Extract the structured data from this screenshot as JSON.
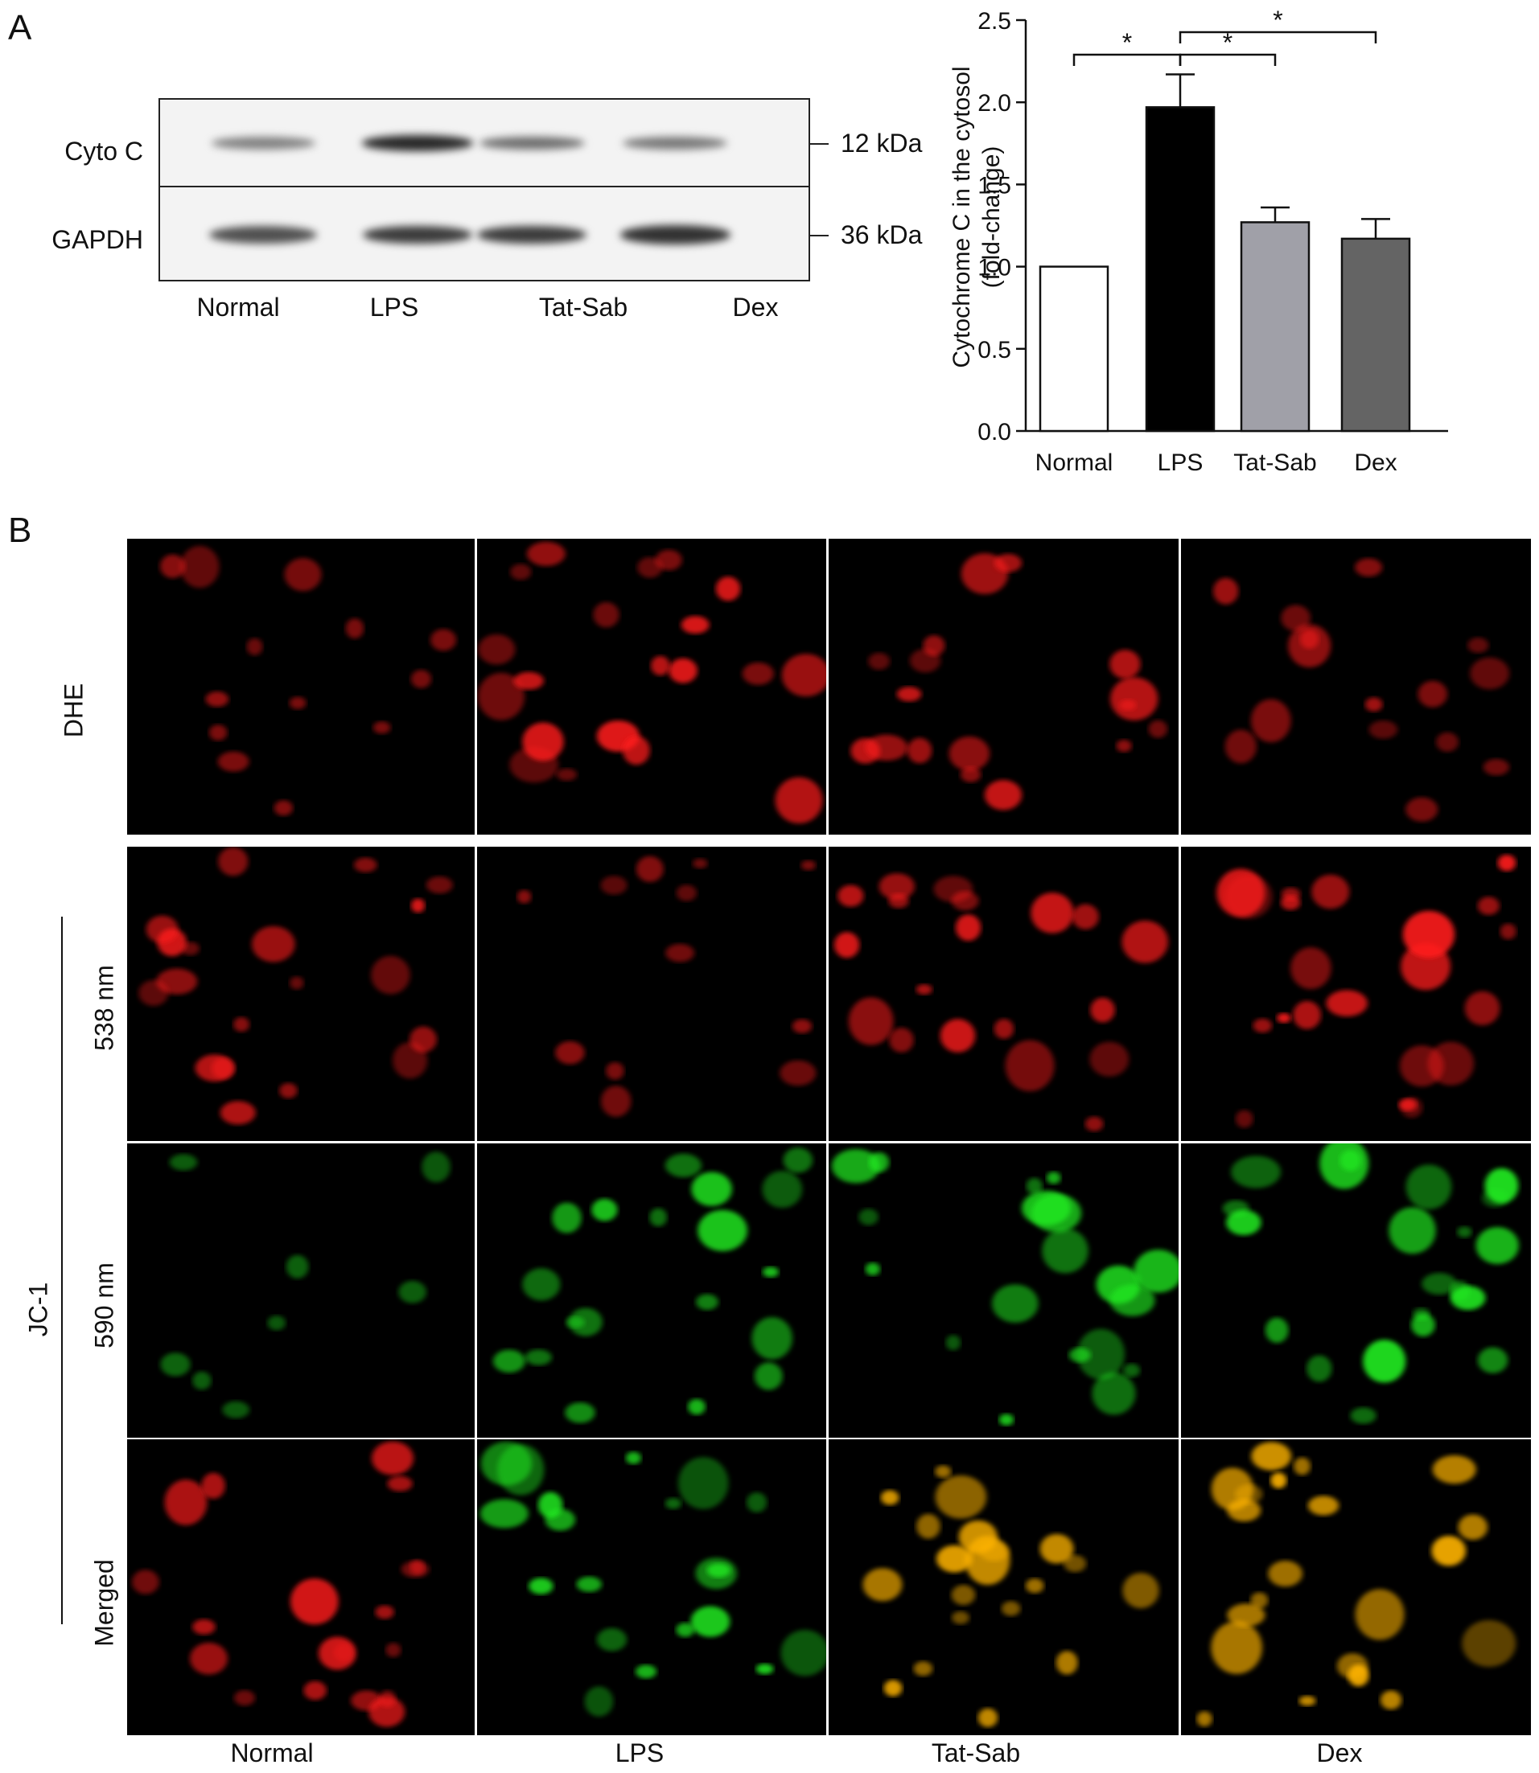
{
  "panels": {
    "a_label": "A",
    "b_label": "B"
  },
  "western_blot": {
    "rows": [
      {
        "label": "Cyto C",
        "marker": "12 kDa",
        "intensities": [
          0.45,
          0.9,
          0.55,
          0.5
        ]
      },
      {
        "label": "GAPDH",
        "marker": "36 kDa",
        "intensities": [
          0.7,
          0.8,
          0.8,
          0.85
        ]
      }
    ],
    "lanes": [
      "Normal",
      "LPS",
      "Tat-Sab",
      "Dex"
    ]
  },
  "chart_data": {
    "type": "bar",
    "categories": [
      "Normal",
      "LPS",
      "Tat-Sab",
      "Dex"
    ],
    "values": [
      1.0,
      1.97,
      1.27,
      1.17
    ],
    "errors": [
      0.0,
      0.2,
      0.09,
      0.12
    ],
    "bar_colors": [
      "#ffffff",
      "#000000",
      "#a0a0a8",
      "#646464"
    ],
    "ylabel_line1": "Cytochrome C in the cytosol",
    "ylabel_line2": "(fold-change)",
    "ylim": [
      0,
      2.5
    ],
    "yticks": [
      "0.0",
      "0.5",
      "1.0",
      "1.5",
      "2.0",
      "2.5"
    ],
    "significance": [
      {
        "from": "Normal",
        "to": "LPS",
        "mark": "*"
      },
      {
        "from": "LPS",
        "to": "Tat-Sab",
        "mark": "*"
      },
      {
        "from": "LPS",
        "to": "Dex",
        "mark": "*"
      }
    ]
  },
  "microscopy": {
    "row_labels": [
      "DHE",
      "538 nm",
      "590 nm",
      "Merged"
    ],
    "group_label": "JC-1",
    "column_labels": [
      "Normal",
      "LPS",
      "Tat-Sab",
      "Dex"
    ],
    "channel_colors": {
      "red": "#ff1a1a",
      "green": "#22ee22",
      "merged": "#ffb400"
    }
  }
}
